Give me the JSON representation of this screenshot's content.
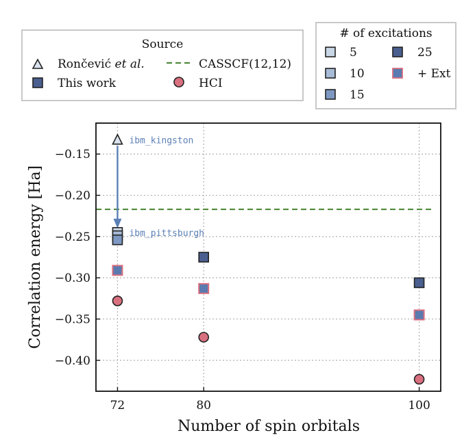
{
  "chart_data": {
    "type": "scatter",
    "xlabel": "Number of spin orbitals",
    "ylabel": "Correlation energy [Ha]",
    "x_ticks": [
      72,
      80,
      100
    ],
    "x_tick_labels": [
      "72",
      "80",
      "100"
    ],
    "y_ticks": [
      -0.4,
      -0.35,
      -0.3,
      -0.25,
      -0.2,
      -0.15
    ],
    "y_tick_labels": [
      "−0.40",
      "−0.35",
      "−0.30",
      "−0.25",
      "−0.20",
      "−0.15"
    ],
    "xlim": [
      70.0,
      102.0
    ],
    "ylim": [
      -0.4375,
      -0.1125
    ],
    "grid": true,
    "colors": {
      "this_work_dark": "#4a5f8f",
      "exc_5": "#c9d6e6",
      "exc_10": "#a8bcd8",
      "exc_15": "#7d98c2",
      "exc_25": "#4a5f8f",
      "ext_edge": "#d9707f",
      "ext_fill": "#5a7bb0",
      "hci": "#d9707f",
      "casscf": "#4f8a3a",
      "arrow": "#5b7fb5",
      "annotation": "#5b7fb5",
      "triangle_fill": "#d9e2ee"
    },
    "series": [
      {
        "name": "Rončević et al.",
        "marker": "triangle",
        "points": [
          {
            "x": 72,
            "y": -0.133
          }
        ]
      },
      {
        "name": "This work (5 excitations)",
        "marker": "square",
        "color_key": "exc_5",
        "points": [
          {
            "x": 72,
            "y": -0.245
          }
        ]
      },
      {
        "name": "This work (10 excitations)",
        "marker": "square",
        "color_key": "exc_10",
        "points": [
          {
            "x": 72,
            "y": -0.249
          }
        ]
      },
      {
        "name": "This work (15 excitations)",
        "marker": "square",
        "color_key": "exc_15",
        "points": [
          {
            "x": 72,
            "y": -0.254
          }
        ]
      },
      {
        "name": "This work (25 excitations)",
        "marker": "square",
        "color_key": "exc_25",
        "points": [
          {
            "x": 80,
            "y": -0.275
          },
          {
            "x": 100,
            "y": -0.306
          }
        ]
      },
      {
        "name": "This work (+ Ext)",
        "marker": "square",
        "color_key": "ext",
        "points": [
          {
            "x": 72,
            "y": -0.291
          },
          {
            "x": 80,
            "y": -0.313
          },
          {
            "x": 100,
            "y": -0.345
          }
        ]
      },
      {
        "name": "HCI",
        "marker": "circle",
        "points": [
          {
            "x": 72,
            "y": -0.328
          },
          {
            "x": 80,
            "y": -0.372
          },
          {
            "x": 100,
            "y": -0.423
          }
        ]
      }
    ],
    "hline": {
      "name": "CASSCF(12,12)",
      "y": -0.217,
      "style": "dashed"
    },
    "annotations": [
      {
        "text": "ibm_kingston",
        "x": 72,
        "y": -0.133
      },
      {
        "text": "ibm_pittsburgh",
        "x": 72,
        "y": -0.245
      }
    ],
    "arrow": {
      "from": {
        "x": 72,
        "y": -0.14
      },
      "to": {
        "x": 72,
        "y": -0.24
      }
    },
    "legend_source": {
      "title": "Source",
      "items": [
        {
          "label_main": "Rončević ",
          "label_ital": "et al.",
          "marker": "triangle"
        },
        {
          "label_main": "CASSCF(12,12)",
          "marker": "dashed-line"
        },
        {
          "label_main": "This work",
          "marker": "square"
        },
        {
          "label_main": "HCI",
          "marker": "circle"
        }
      ]
    },
    "legend_excitations": {
      "title": "# of excitations",
      "items": [
        {
          "label": "5",
          "color_key": "exc_5"
        },
        {
          "label": "25",
          "color_key": "exc_25"
        },
        {
          "label": "10",
          "color_key": "exc_10"
        },
        {
          "label": "+ Ext",
          "color_key": "ext"
        },
        {
          "label": "15",
          "color_key": "exc_15"
        }
      ]
    }
  }
}
